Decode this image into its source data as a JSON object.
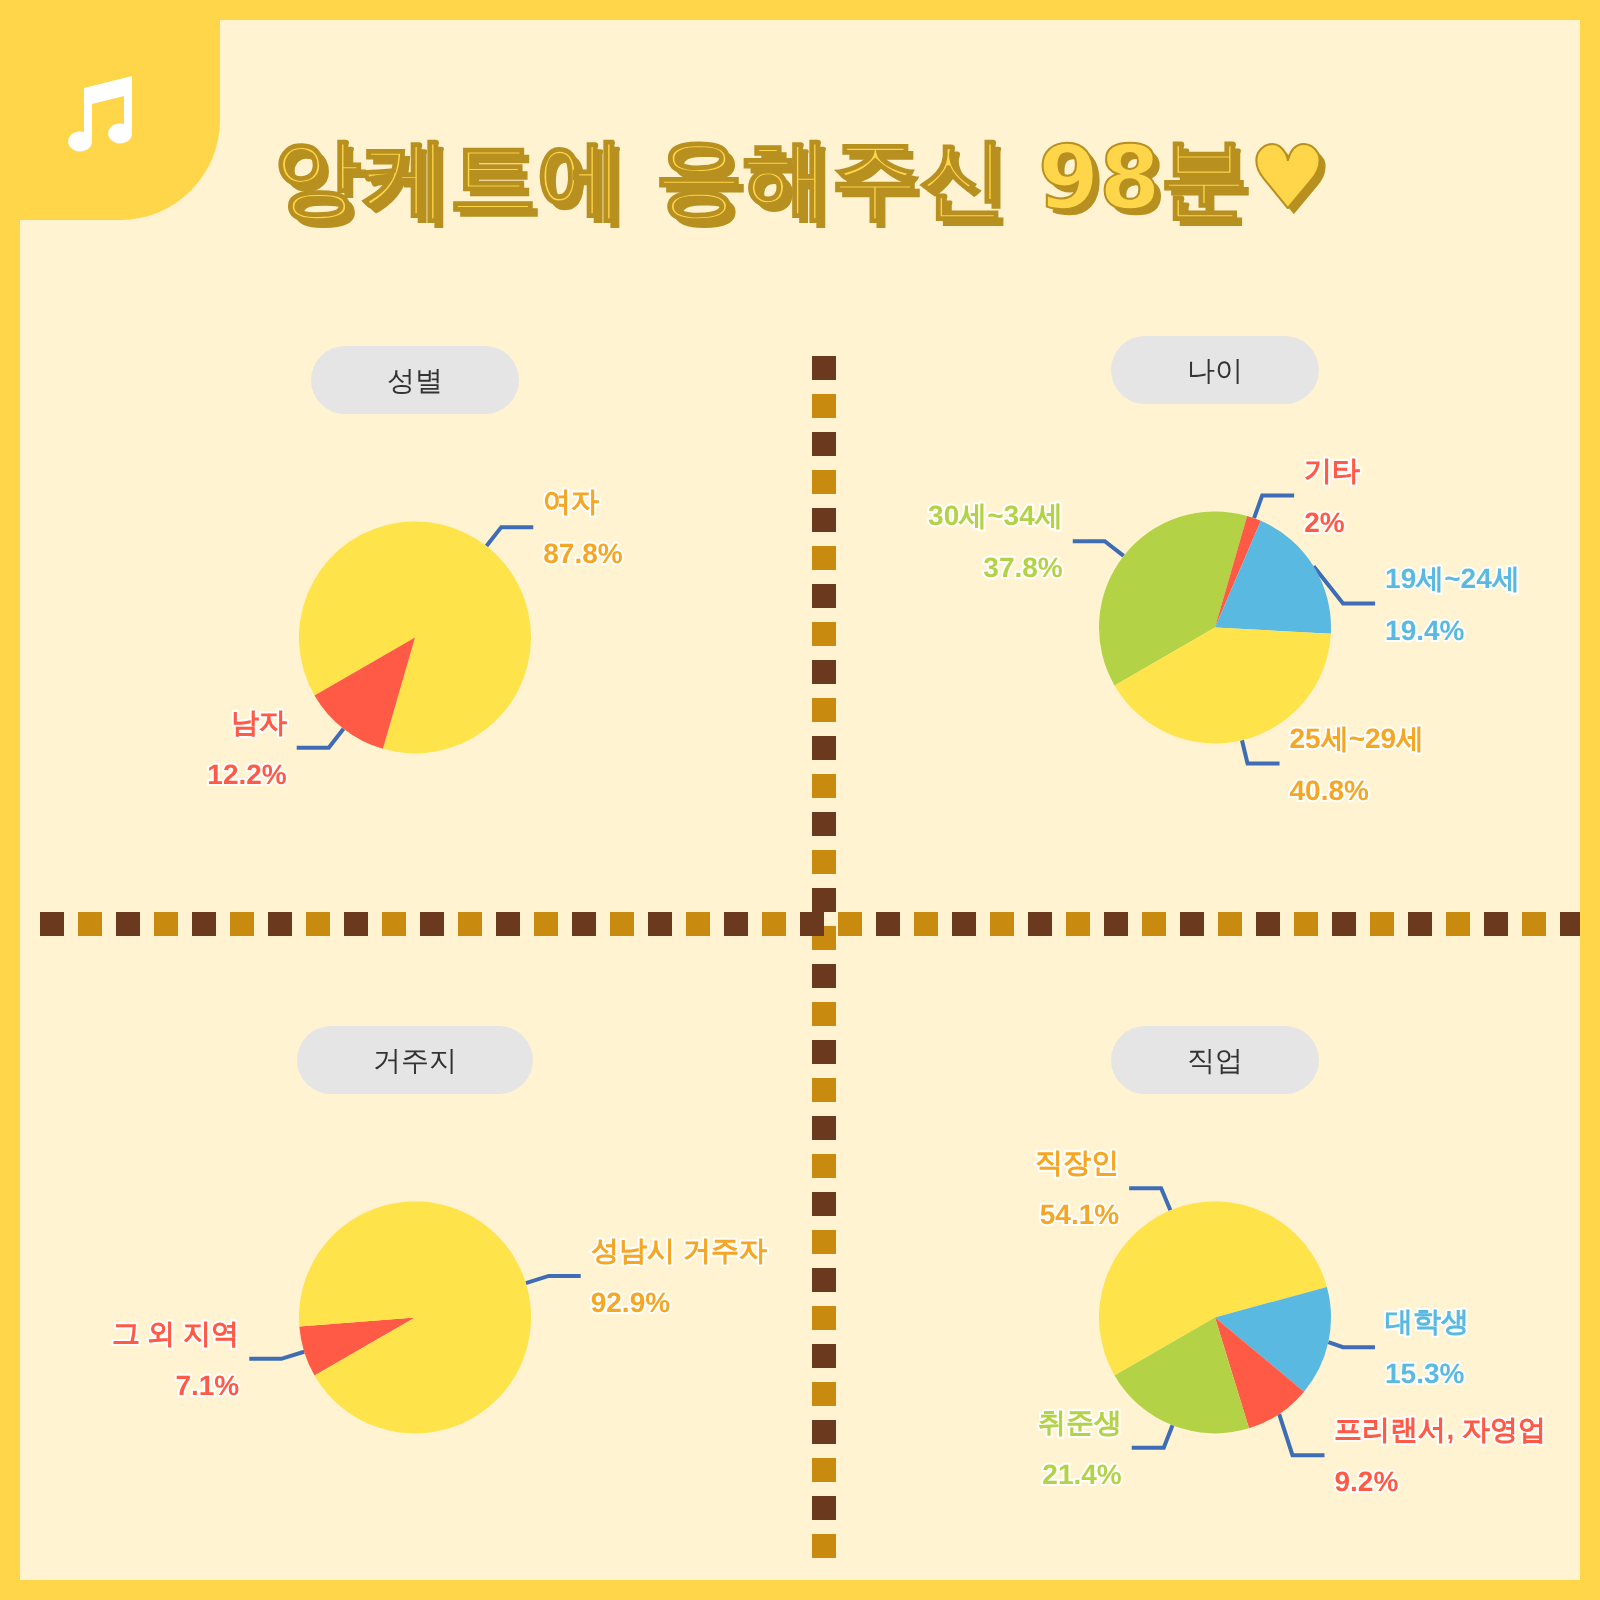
{
  "chart_data": [
    {
      "type": "other",
      "title": "앙케트에 응해주신 98분♥"
    },
    {
      "type": "pie",
      "title": "성별",
      "categories": [
        "여자",
        "남자"
      ],
      "values": [
        87.8,
        12.2
      ],
      "value_labels": [
        "87.8%",
        "12.2%"
      ],
      "colors": [
        "#ffe34a",
        "#ff5a45"
      ]
    },
    {
      "type": "pie",
      "title": "나이",
      "categories": [
        "30세~34세",
        "기타",
        "19세~24세",
        "25세~29세"
      ],
      "values": [
        37.8,
        2,
        19.4,
        40.8
      ],
      "value_labels": [
        "37.8%",
        "2%",
        "19.4%",
        "40.8%"
      ],
      "colors": [
        "#b3d245",
        "#ff5a45",
        "#5ab9e0",
        "#ffe34a"
      ]
    },
    {
      "type": "pie",
      "title": "거주지",
      "categories": [
        "그 외 지역",
        "성남시 거주자"
      ],
      "values": [
        7.1,
        92.9
      ],
      "value_labels": [
        "7.1%",
        "92.9%"
      ],
      "colors": [
        "#ff5a45",
        "#ffe34a"
      ]
    },
    {
      "type": "pie",
      "title": "직업",
      "categories": [
        "직장인",
        "대학생",
        "프리랜서, 자영업",
        "취준생"
      ],
      "values": [
        54.1,
        15.3,
        9.2,
        21.4
      ],
      "value_labels": [
        "54.1%",
        "15.3%",
        "9.2%",
        "21.4%"
      ],
      "colors": [
        "#ffe34a",
        "#5ab9e0",
        "#ff5a45",
        "#b3d245"
      ]
    }
  ]
}
